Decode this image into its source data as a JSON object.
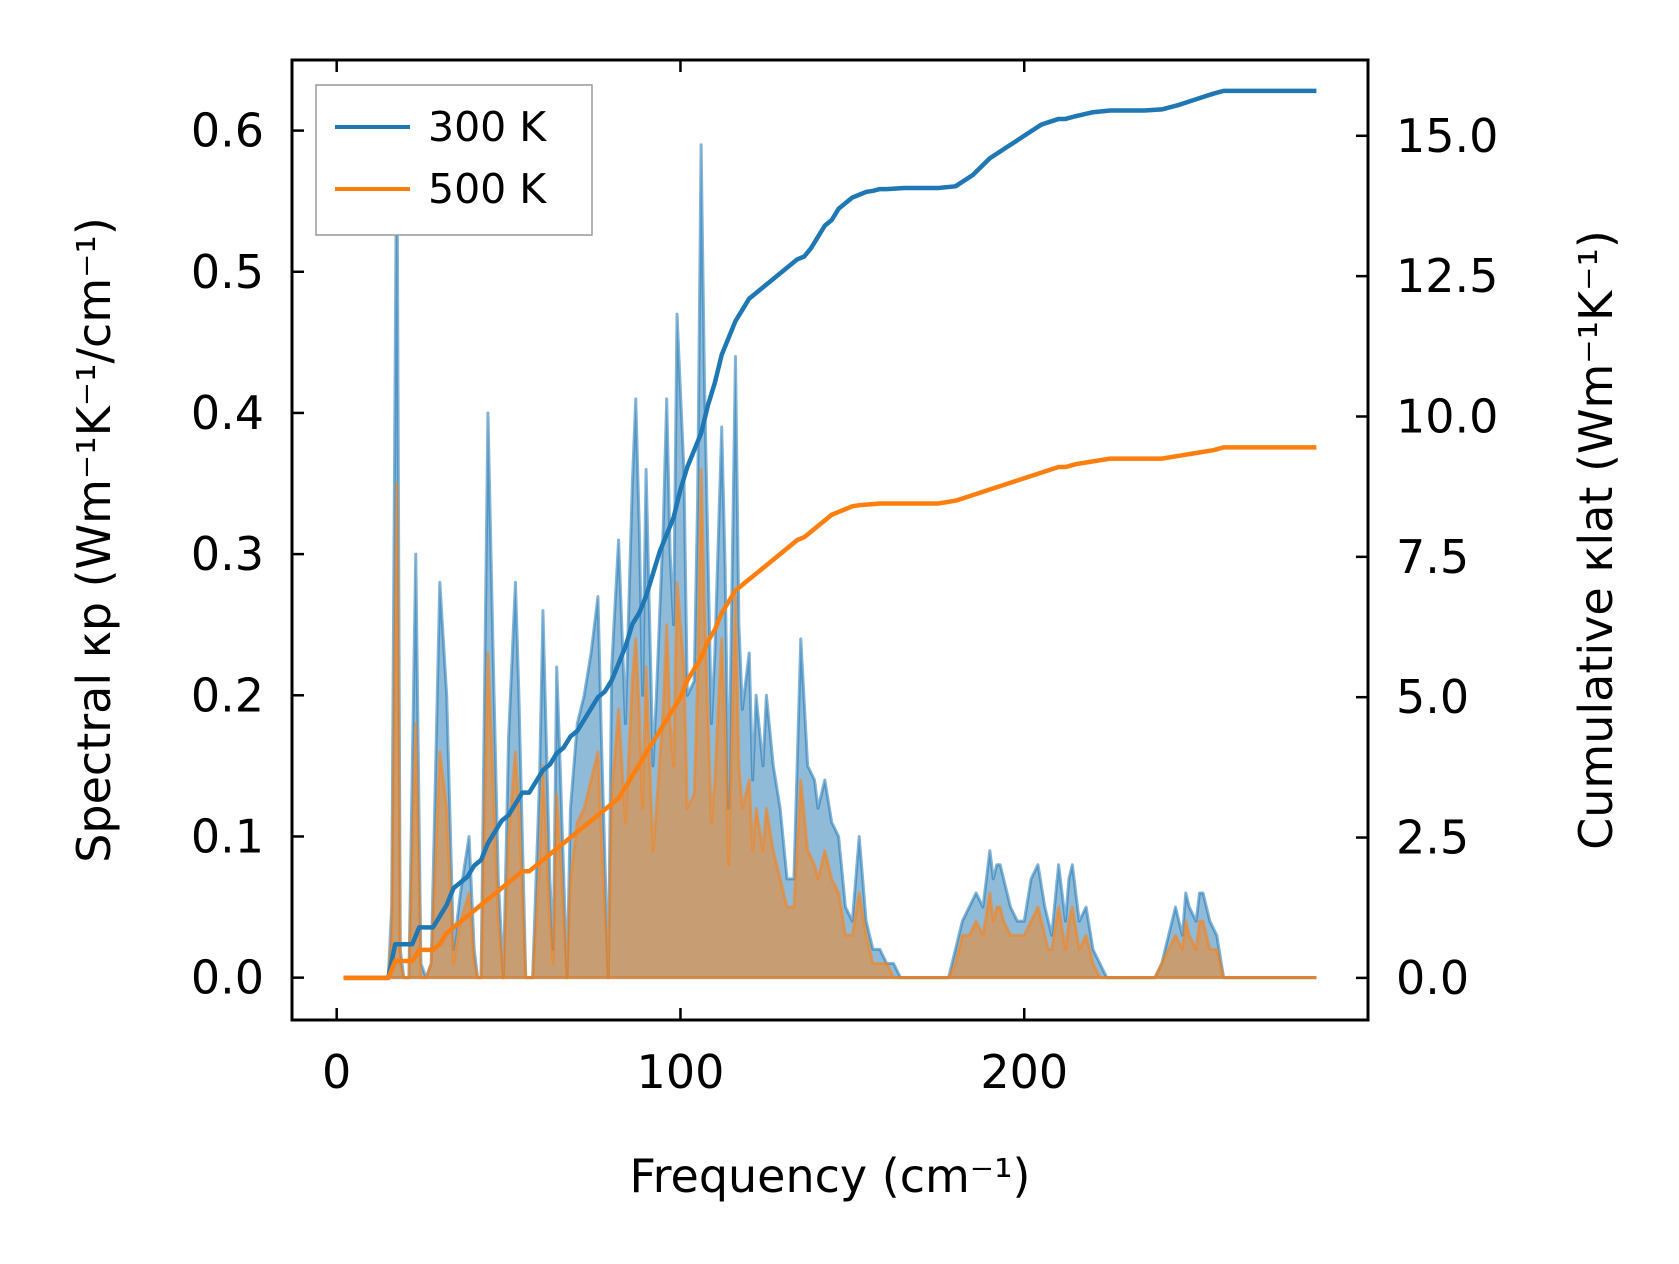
{
  "chart_data": {
    "type": "line",
    "title": "",
    "xlabel": "Frequency (cm⁻¹)",
    "ylabel_left": "Spectral κp (Wm⁻¹K⁻¹/cm⁻¹)",
    "ylabel_right": "Cumulative κlat (Wm⁻¹K⁻¹)",
    "xlim": [
      -13,
      300
    ],
    "ylim_left": [
      -0.03,
      0.65
    ],
    "ylim_right": [
      -0.75,
      16.35
    ],
    "x_ticks": [
      0,
      100,
      200
    ],
    "y_ticks_left": [
      0.0,
      0.1,
      0.2,
      0.3,
      0.4,
      0.5,
      0.6
    ],
    "y_ticks_right": [
      0.0,
      2.5,
      5.0,
      7.5,
      10.0,
      12.5,
      15.0
    ],
    "x_tick_labels": [
      "0",
      "100",
      "200"
    ],
    "y_tick_labels_left": [
      "0.0",
      "0.1",
      "0.2",
      "0.3",
      "0.4",
      "0.5",
      "0.6"
    ],
    "y_tick_labels_right": [
      "0.0",
      "2.5",
      "5.0",
      "7.5",
      "10.0",
      "12.5",
      "15.0"
    ],
    "legend": {
      "position": "upper left",
      "entries": [
        "300 K",
        "500 K"
      ]
    },
    "grid": false,
    "colors": {
      "300K": "#1f77b4",
      "500K": "#ff7f0e"
    },
    "spectral_300K": {
      "x": [
        2,
        10,
        15,
        16,
        17.5,
        18.5,
        19.5,
        21,
        23,
        24.5,
        26,
        27.5,
        30,
        32,
        34,
        36,
        38.5,
        40,
        41,
        42,
        44,
        45.5,
        47,
        48.5,
        50,
        52,
        53,
        55,
        57,
        58,
        59,
        60,
        62,
        63,
        64,
        65,
        67,
        68,
        70,
        72,
        74,
        76,
        77,
        79,
        80,
        82,
        84,
        86,
        87,
        88,
        89,
        90,
        92,
        93,
        95,
        96,
        97,
        98,
        99,
        101,
        102,
        104,
        105,
        106,
        107,
        109,
        110,
        112,
        113,
        114,
        116,
        117,
        118,
        120,
        121,
        122,
        124,
        125,
        127,
        129,
        131,
        133,
        135,
        137,
        139,
        140,
        142,
        144,
        146,
        148,
        150,
        152,
        154,
        156,
        158,
        160,
        162,
        164,
        166,
        168,
        170,
        174,
        178,
        180,
        182,
        184,
        186,
        188,
        190,
        191,
        192,
        193,
        194,
        196,
        198,
        200,
        202,
        204,
        206,
        207,
        208,
        210,
        212,
        213,
        214,
        216,
        218,
        220,
        222,
        224,
        226,
        228,
        230,
        234,
        238,
        240,
        242,
        244,
        246,
        247,
        248,
        250,
        251,
        252,
        254,
        256,
        258,
        260,
        262,
        270,
        285
      ],
      "y": [
        0,
        0,
        0,
        0.05,
        0.62,
        0.02,
        0.0,
        0.0,
        0.3,
        0.01,
        0.0,
        0.01,
        0.28,
        0.2,
        0.02,
        0.06,
        0.1,
        0.02,
        0.0,
        0.0,
        0.4,
        0.23,
        0.07,
        0.0,
        0.17,
        0.28,
        0.2,
        0.0,
        0.0,
        0.07,
        0.14,
        0.26,
        0.07,
        0.02,
        0.22,
        0.15,
        0.0,
        0.12,
        0.18,
        0.2,
        0.23,
        0.27,
        0.17,
        0.0,
        0.22,
        0.31,
        0.18,
        0.35,
        0.41,
        0.32,
        0.2,
        0.36,
        0.15,
        0.2,
        0.32,
        0.41,
        0.3,
        0.25,
        0.47,
        0.36,
        0.2,
        0.21,
        0.34,
        0.59,
        0.42,
        0.18,
        0.23,
        0.39,
        0.29,
        0.12,
        0.44,
        0.25,
        0.19,
        0.23,
        0.14,
        0.2,
        0.15,
        0.2,
        0.15,
        0.12,
        0.07,
        0.07,
        0.24,
        0.15,
        0.14,
        0.12,
        0.14,
        0.11,
        0.1,
        0.05,
        0.04,
        0.1,
        0.04,
        0.02,
        0.02,
        0.01,
        0.01,
        0.0,
        0.0,
        0.0,
        0.0,
        0.0,
        0.0,
        0.02,
        0.04,
        0.05,
        0.06,
        0.05,
        0.09,
        0.07,
        0.08,
        0.08,
        0.07,
        0.05,
        0.04,
        0.04,
        0.07,
        0.08,
        0.05,
        0.04,
        0.03,
        0.08,
        0.04,
        0.07,
        0.08,
        0.04,
        0.05,
        0.02,
        0.01,
        0.0,
        0.0,
        0.0,
        0.0,
        0.0,
        0.0,
        0.01,
        0.03,
        0.05,
        0.03,
        0.06,
        0.05,
        0.04,
        0.06,
        0.06,
        0.04,
        0.03,
        0.0,
        0.0,
        0.0,
        0.0,
        0.0
      ],
      "fill_to_zero": true
    },
    "spectral_500K": {
      "x": [
        2,
        10,
        15,
        16,
        17.5,
        18.5,
        19.5,
        21,
        23,
        24.5,
        26,
        27.5,
        30,
        32,
        34,
        36,
        38.5,
        40,
        41,
        42,
        44,
        45.5,
        47,
        48.5,
        50,
        52,
        53,
        55,
        57,
        58,
        59,
        60,
        62,
        63,
        64,
        65,
        67,
        68,
        70,
        72,
        74,
        76,
        77,
        79,
        80,
        82,
        84,
        86,
        87,
        88,
        89,
        90,
        92,
        93,
        95,
        96,
        97,
        98,
        99,
        101,
        102,
        104,
        105,
        106,
        107,
        109,
        110,
        112,
        113,
        114,
        116,
        117,
        118,
        120,
        121,
        122,
        124,
        125,
        127,
        129,
        131,
        133,
        135,
        137,
        139,
        140,
        142,
        144,
        146,
        148,
        150,
        152,
        154,
        156,
        158,
        160,
        162,
        164,
        166,
        168,
        170,
        174,
        178,
        180,
        182,
        184,
        186,
        188,
        190,
        191,
        192,
        193,
        194,
        196,
        198,
        200,
        202,
        204,
        206,
        207,
        208,
        210,
        212,
        213,
        214,
        216,
        218,
        220,
        222,
        224,
        226,
        228,
        230,
        234,
        238,
        240,
        242,
        244,
        246,
        247,
        248,
        250,
        251,
        252,
        254,
        256,
        258,
        260,
        262,
        270,
        285
      ],
      "y": [
        0,
        0,
        0,
        0.03,
        0.35,
        0.01,
        0.0,
        0.0,
        0.18,
        0.0,
        0.0,
        0.01,
        0.16,
        0.12,
        0.01,
        0.04,
        0.06,
        0.01,
        0.0,
        0.0,
        0.23,
        0.14,
        0.04,
        0.0,
        0.1,
        0.16,
        0.12,
        0.0,
        0.0,
        0.04,
        0.08,
        0.15,
        0.04,
        0.01,
        0.13,
        0.09,
        0.0,
        0.07,
        0.11,
        0.12,
        0.14,
        0.16,
        0.1,
        0.0,
        0.13,
        0.19,
        0.11,
        0.21,
        0.24,
        0.19,
        0.12,
        0.22,
        0.09,
        0.12,
        0.19,
        0.25,
        0.18,
        0.15,
        0.28,
        0.22,
        0.12,
        0.13,
        0.21,
        0.36,
        0.26,
        0.11,
        0.14,
        0.24,
        0.18,
        0.08,
        0.27,
        0.15,
        0.12,
        0.14,
        0.09,
        0.12,
        0.09,
        0.12,
        0.09,
        0.07,
        0.05,
        0.05,
        0.14,
        0.09,
        0.08,
        0.07,
        0.09,
        0.07,
        0.06,
        0.03,
        0.03,
        0.06,
        0.03,
        0.01,
        0.01,
        0.01,
        0.0,
        0.0,
        0.0,
        0.0,
        0.0,
        0.0,
        0.0,
        0.01,
        0.03,
        0.03,
        0.04,
        0.03,
        0.06,
        0.04,
        0.05,
        0.05,
        0.04,
        0.03,
        0.03,
        0.03,
        0.04,
        0.05,
        0.03,
        0.02,
        0.02,
        0.05,
        0.02,
        0.04,
        0.05,
        0.02,
        0.03,
        0.01,
        0.0,
        0.0,
        0.0,
        0.0,
        0.0,
        0.0,
        0.0,
        0.01,
        0.02,
        0.03,
        0.02,
        0.04,
        0.03,
        0.02,
        0.04,
        0.04,
        0.02,
        0.02,
        0.0,
        0.0,
        0.0,
        0.0,
        0.0
      ],
      "fill_to_zero": true
    },
    "cumulative_300K": {
      "x": [
        2,
        15,
        17,
        20,
        22,
        24,
        26,
        28,
        30,
        32,
        34,
        36,
        38,
        40,
        42,
        44,
        46,
        48,
        50,
        52,
        54,
        56,
        58,
        60,
        62,
        64,
        66,
        68,
        70,
        72,
        74,
        76,
        78,
        80,
        82,
        84,
        86,
        88,
        90,
        92,
        94,
        96,
        98,
        100,
        102,
        104,
        106,
        108,
        110,
        112,
        114,
        116,
        118,
        120,
        122,
        124,
        126,
        128,
        130,
        132,
        134,
        136,
        138,
        140,
        142,
        144,
        146,
        148,
        150,
        152,
        154,
        156,
        158,
        160,
        165,
        170,
        175,
        180,
        185,
        190,
        195,
        200,
        205,
        210,
        212,
        215,
        220,
        225,
        230,
        235,
        240,
        245,
        250,
        255,
        258,
        262,
        270,
        285
      ],
      "y": [
        0,
        0,
        0.6,
        0.6,
        0.6,
        0.9,
        0.9,
        0.9,
        1.1,
        1.3,
        1.6,
        1.7,
        1.8,
        2.0,
        2.1,
        2.4,
        2.6,
        2.8,
        2.9,
        3.1,
        3.3,
        3.3,
        3.5,
        3.7,
        3.8,
        4.0,
        4.1,
        4.3,
        4.4,
        4.6,
        4.8,
        5.0,
        5.1,
        5.3,
        5.6,
        5.9,
        6.3,
        6.5,
        6.8,
        7.2,
        7.6,
        7.9,
        8.2,
        8.7,
        9.1,
        9.4,
        9.7,
        10.2,
        10.6,
        11.1,
        11.4,
        11.7,
        11.9,
        12.1,
        12.2,
        12.3,
        12.4,
        12.5,
        12.6,
        12.7,
        12.8,
        12.85,
        13.0,
        13.2,
        13.4,
        13.5,
        13.7,
        13.8,
        13.9,
        13.95,
        14.0,
        14.02,
        14.05,
        14.05,
        14.07,
        14.07,
        14.07,
        14.1,
        14.3,
        14.6,
        14.8,
        15.0,
        15.2,
        15.3,
        15.3,
        15.35,
        15.42,
        15.45,
        15.45,
        15.45,
        15.47,
        15.55,
        15.65,
        15.75,
        15.8,
        15.8,
        15.8,
        15.8
      ]
    },
    "cumulative_500K": {
      "x": [
        2,
        15,
        17,
        20,
        22,
        24,
        26,
        28,
        30,
        32,
        34,
        36,
        38,
        40,
        42,
        44,
        46,
        48,
        50,
        52,
        54,
        56,
        58,
        60,
        62,
        64,
        66,
        68,
        70,
        72,
        74,
        76,
        78,
        80,
        82,
        84,
        86,
        88,
        90,
        92,
        94,
        96,
        98,
        100,
        102,
        104,
        106,
        108,
        110,
        112,
        114,
        116,
        118,
        120,
        122,
        124,
        126,
        128,
        130,
        132,
        134,
        136,
        138,
        140,
        142,
        144,
        146,
        148,
        150,
        152,
        154,
        156,
        158,
        160,
        165,
        170,
        175,
        180,
        185,
        190,
        195,
        200,
        205,
        210,
        212,
        215,
        220,
        225,
        230,
        235,
        240,
        245,
        250,
        255,
        258,
        262,
        270,
        285
      ],
      "y": [
        0,
        0,
        0.3,
        0.3,
        0.3,
        0.5,
        0.5,
        0.5,
        0.6,
        0.8,
        0.9,
        1.0,
        1.1,
        1.2,
        1.3,
        1.4,
        1.5,
        1.6,
        1.7,
        1.8,
        1.9,
        1.9,
        2.0,
        2.1,
        2.2,
        2.3,
        2.4,
        2.5,
        2.6,
        2.7,
        2.8,
        2.9,
        3.0,
        3.1,
        3.2,
        3.4,
        3.6,
        3.8,
        4.0,
        4.2,
        4.4,
        4.6,
        4.8,
        5.0,
        5.3,
        5.5,
        5.7,
        6.0,
        6.2,
        6.5,
        6.7,
        6.9,
        7.0,
        7.1,
        7.2,
        7.3,
        7.4,
        7.5,
        7.6,
        7.7,
        7.8,
        7.85,
        7.95,
        8.05,
        8.15,
        8.25,
        8.3,
        8.35,
        8.4,
        8.42,
        8.43,
        8.44,
        8.45,
        8.45,
        8.45,
        8.45,
        8.45,
        8.5,
        8.6,
        8.7,
        8.8,
        8.9,
        9.0,
        9.1,
        9.1,
        9.15,
        9.2,
        9.25,
        9.25,
        9.25,
        9.25,
        9.3,
        9.35,
        9.4,
        9.45,
        9.45,
        9.45,
        9.45
      ]
    }
  }
}
